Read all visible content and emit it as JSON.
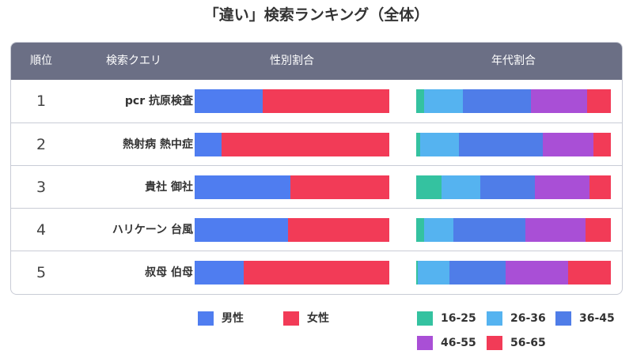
{
  "title": "「違い」検索ランキング（全体）",
  "header": {
    "rank": "順位",
    "query": "検索クエリ",
    "gender": "性別割合",
    "age": "年代割合"
  },
  "colors": {
    "male": "#4f7df0",
    "female": "#f23b57",
    "age_16_25": "#34c2a0",
    "age_26_36": "#55b3f0",
    "age_36_45": "#4f7de8",
    "age_46_55": "#a94fd6",
    "age_56_65": "#f23b57",
    "header_bg": "#6b6f85"
  },
  "legend": {
    "gender": [
      "男性",
      "女性"
    ],
    "age": [
      "16-25",
      "26-36",
      "36-45",
      "46-55",
      "56-65"
    ]
  },
  "chart_data": {
    "type": "bar",
    "stacked": true,
    "normalized": true,
    "title": "「違い」検索ランキング（全体）",
    "rows": [
      {
        "rank": "1",
        "query": "pcr 抗原検査",
        "gender": [
          35,
          65
        ],
        "age": [
          4,
          20,
          35,
          29,
          12
        ]
      },
      {
        "rank": "2",
        "query": "熱射病 熱中症",
        "gender": [
          14,
          86
        ],
        "age": [
          2,
          20,
          43,
          26,
          9
        ]
      },
      {
        "rank": "3",
        "query": "貴社 御社",
        "gender": [
          49,
          51
        ],
        "age": [
          13,
          20,
          28,
          28,
          11
        ]
      },
      {
        "rank": "4",
        "query": "ハリケーン 台風",
        "gender": [
          48,
          52
        ],
        "age": [
          4,
          15,
          37,
          31,
          13
        ]
      },
      {
        "rank": "5",
        "query": "叔母 伯母",
        "gender": [
          25,
          75
        ],
        "age": [
          1,
          16,
          29,
          32,
          22
        ]
      }
    ],
    "gender_series": [
      "男性",
      "女性"
    ],
    "age_series": [
      "16-25",
      "26-36",
      "36-45",
      "46-55",
      "56-65"
    ]
  }
}
